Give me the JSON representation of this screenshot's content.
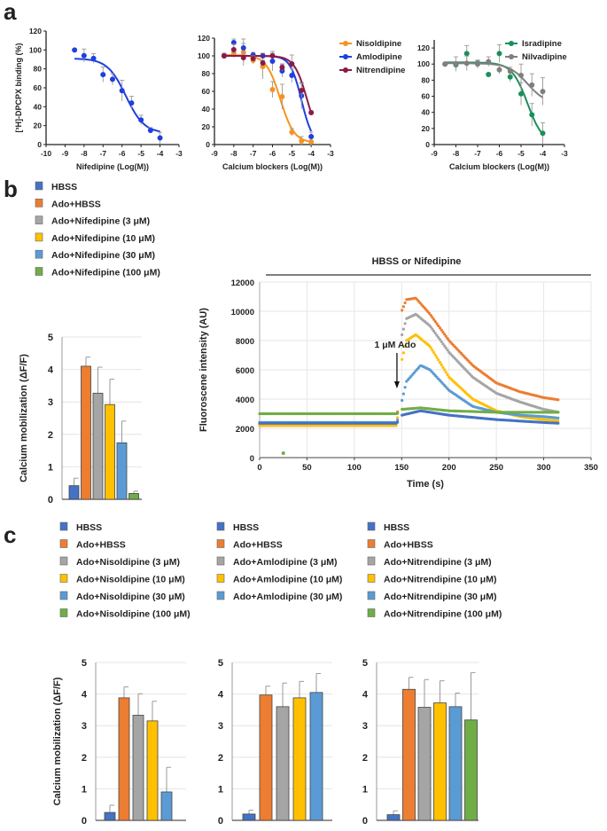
{
  "panels": {
    "a": "a",
    "b": "b",
    "c": "c"
  },
  "colors": {
    "HBSS": "#4472c4",
    "Ado+HBSS": "#ed7d31",
    "3": "#a5a5a5",
    "10": "#ffc000",
    "30": "#5b9bd5",
    "100": "#70ad47",
    "Nifedipine": "#1f3fe0",
    "Nisoldipine": "#f7931e",
    "Amlodipine": "#1f3fe0",
    "Nitrendipine": "#8b1a4a",
    "Isradipine": "#1a8f5a",
    "Nilvadipine": "#7f7f7f"
  },
  "chart_data": [
    {
      "id": "a1",
      "type": "scatter",
      "xlabel": "Nifedipine (Log(M))",
      "ylabel": "[³H]-DPCPX binding (%)",
      "xlim": [
        -10,
        -3
      ],
      "ylim": [
        0,
        120
      ],
      "xticks": [
        "-10",
        "-9",
        "-8",
        "-7",
        "-6",
        "-5",
        "-4",
        "-3"
      ],
      "yticks": [
        "0",
        "20",
        "40",
        "60",
        "80",
        "100",
        "120"
      ],
      "series": [
        {
          "key": "Nifedipine",
          "x": [
            -8.5,
            -8,
            -7.5,
            -7,
            -6.5,
            -6,
            -5.5,
            -5,
            -4.5,
            -4
          ],
          "y": [
            100,
            94,
            91,
            74,
            69,
            57,
            44,
            26,
            15,
            7
          ],
          "err": [
            0,
            7,
            5,
            8,
            6,
            11,
            7,
            5,
            3,
            6
          ],
          "fit": {
            "top": 91,
            "bottom": 12,
            "logIC50": -5.8,
            "hill": 0.9,
            "range": [
              -8.5,
              -4
            ]
          }
        }
      ]
    },
    {
      "id": "a2",
      "type": "scatter",
      "xlabel": "Calcium blockers (Log(M))",
      "ylabel": "",
      "xlim": [
        -9,
        -3
      ],
      "ylim": [
        0,
        120
      ],
      "xticks": [
        "-9",
        "-8",
        "-7",
        "-6",
        "-5",
        "-4",
        "-3"
      ],
      "yticks": [
        "0",
        "20",
        "40",
        "60",
        "80",
        "100",
        "120"
      ],
      "legend": "right",
      "series": [
        {
          "name": "Nisoldipine",
          "key": "Nisoldipine",
          "x": [
            -8.5,
            -8,
            -7.5,
            -7,
            -6.5,
            -6,
            -5.5,
            -5,
            -4.5,
            -4
          ],
          "y": [
            100,
            103,
            104,
            95,
            88,
            62,
            54,
            14,
            4,
            3
          ],
          "err": [
            3,
            5,
            15,
            4,
            14,
            9,
            14,
            4,
            5,
            4
          ],
          "fit": {
            "top": 101,
            "bottom": 2,
            "logIC50": -5.6,
            "hill": 1.2,
            "range": [
              -8.5,
              -4
            ]
          }
        },
        {
          "name": "Amlodipine",
          "key": "Amlodipine",
          "x": [
            -8.5,
            -8,
            -7.5,
            -7,
            -6.5,
            -6,
            -5.5,
            -5,
            -4.5,
            -4
          ],
          "y": [
            100,
            115,
            109,
            101,
            100,
            94,
            83,
            78,
            55,
            9
          ],
          "err": [
            2,
            4,
            5,
            3,
            3,
            11,
            7,
            8,
            15,
            5
          ],
          "fit": {
            "top": 100,
            "bottom": 0,
            "logIC50": -4.5,
            "hill": 1.5,
            "range": [
              -8.5,
              -4
            ]
          }
        },
        {
          "name": "Nitrendipine",
          "key": "Nitrendipine",
          "x": [
            -8.5,
            -8,
            -7.5,
            -7,
            -6.5,
            -6,
            -5.5,
            -5,
            -4.5,
            -4
          ],
          "y": [
            100,
            107,
            98,
            97,
            92,
            100,
            87,
            91,
            61,
            36
          ],
          "err": [
            2,
            6,
            5,
            3,
            3,
            3,
            4,
            10,
            8,
            2
          ],
          "fit": {
            "top": 100,
            "bottom": 0,
            "logIC50": -4.2,
            "hill": 1.3,
            "range": [
              -8.5,
              -4
            ]
          }
        }
      ]
    },
    {
      "id": "a3",
      "type": "scatter",
      "xlabel": "Calcium blockers (Log(M))",
      "ylabel": "",
      "xlim": [
        -9,
        -3
      ],
      "ylim": [
        0,
        130
      ],
      "xticks": [
        "-9",
        "-8",
        "-7",
        "-6",
        "-5",
        "-4",
        "-3"
      ],
      "yticks": [
        "0",
        "20",
        "40",
        "60",
        "80",
        "100",
        "120"
      ],
      "legend": "top-right",
      "series": [
        {
          "name": "Isradipine",
          "key": "Isradipine",
          "x": [
            -8.5,
            -8,
            -7.5,
            -7,
            -6.5,
            -6,
            -5.5,
            -5,
            -4.5,
            -4
          ],
          "y": [
            100,
            99,
            113,
            101,
            87,
            113,
            84,
            63,
            37,
            14
          ],
          "err": [
            2,
            4,
            10,
            3,
            2,
            11,
            6,
            14,
            14,
            13
          ],
          "fit": {
            "top": 102,
            "bottom": 0,
            "logIC50": -4.7,
            "hill": 1.2,
            "range": [
              -8.5,
              -4
            ]
          }
        },
        {
          "name": "Nilvadipine",
          "key": "Nilvadipine",
          "x": [
            -8.5,
            -8,
            -7.5,
            -7,
            -6.5,
            -6,
            -5.5,
            -5,
            -4.5,
            -4
          ],
          "y": [
            100,
            100,
            101,
            100,
            103,
            93,
            91,
            86,
            74,
            66
          ],
          "err": [
            2,
            9,
            9,
            5,
            6,
            5,
            5,
            14,
            14,
            17
          ],
          "fit": {
            "top": 101,
            "bottom": 50,
            "logIC50": -4.7,
            "hill": 1.0,
            "range": [
              -8.5,
              -4
            ]
          }
        }
      ]
    },
    {
      "id": "b1",
      "type": "bar",
      "ylabel": "Calcium mobilization (ΔF/F)",
      "ylim": [
        0,
        5
      ],
      "yticks": [
        "0",
        "1",
        "2",
        "3",
        "4",
        "5"
      ],
      "grid": true,
      "legend": "top",
      "categories": [
        "HBSS",
        "Ado+HBSS",
        "Ado+Nifedipine (3 μM)",
        "Ado+Nifedipine (10 μM)",
        "Ado+Nifedipine (30 μM)",
        "Ado+Nifedipine (100 μM)"
      ],
      "keys": [
        "HBSS",
        "Ado+HBSS",
        "3",
        "10",
        "30",
        "100"
      ],
      "values": [
        0.42,
        4.1,
        3.27,
        2.92,
        1.74,
        0.18
      ],
      "errors": [
        0.23,
        0.28,
        0.8,
        0.78,
        0.67,
        0.07
      ]
    },
    {
      "id": "b2",
      "type": "scatter",
      "title": "HBSS or Nifedipine",
      "xlabel": "Time (s)",
      "ylabel": "Fluoroscene intensity (AU)",
      "xlim": [
        0,
        350
      ],
      "ylim": [
        0,
        12000
      ],
      "grid": true,
      "xticks": [
        "0",
        "50",
        "100",
        "150",
        "200",
        "250",
        "300",
        "350"
      ],
      "yticks": [
        "0",
        "2000",
        "4000",
        "6000",
        "8000",
        "10000",
        "12000"
      ],
      "annotation": {
        "text": "1 μM Ado",
        "x": 145
      },
      "series": [
        {
          "key": "Ado+HBSS",
          "t": [
            0,
            145,
            150,
            155,
            165,
            180,
            200,
            225,
            250,
            275,
            300,
            316
          ],
          "y": [
            2200,
            2200,
            10000,
            10800,
            10900,
            9800,
            8000,
            6300,
            5100,
            4500,
            4100,
            3950
          ]
        },
        {
          "key": "3",
          "t": [
            0,
            145,
            150,
            155,
            165,
            180,
            200,
            225,
            250,
            275,
            300,
            316
          ],
          "y": [
            2300,
            2300,
            8300,
            9500,
            9800,
            9000,
            7200,
            5500,
            4400,
            3800,
            3300,
            3100
          ]
        },
        {
          "key": "10",
          "t": [
            0,
            145,
            150,
            155,
            165,
            180,
            200,
            225,
            250,
            275,
            300,
            316
          ],
          "y": [
            2200,
            2200,
            6600,
            8000,
            8400,
            7600,
            5500,
            4000,
            3200,
            2800,
            2600,
            2500
          ]
        },
        {
          "key": "30",
          "t": [
            0,
            145,
            150,
            155,
            170,
            180,
            200,
            225,
            250,
            275,
            300,
            316
          ],
          "y": [
            2400,
            2400,
            3800,
            5200,
            6300,
            6000,
            4600,
            3500,
            3100,
            2900,
            2800,
            2700
          ]
        },
        {
          "key": "HBSS",
          "t": [
            0,
            145,
            150,
            170,
            200,
            250,
            300,
            316
          ],
          "y": [
            2350,
            2350,
            2900,
            3200,
            2900,
            2600,
            2400,
            2350
          ]
        },
        {
          "key": "100",
          "t": [
            0,
            145,
            150,
            170,
            200,
            250,
            316
          ],
          "y": [
            3000,
            3000,
            3300,
            3400,
            3200,
            3100,
            3100
          ],
          "outlier": [
            25,
            300
          ]
        }
      ]
    },
    {
      "id": "c1",
      "type": "bar",
      "ylabel": "Calcium mobilization (ΔF/F)",
      "ylim": [
        0,
        5
      ],
      "yticks": [
        "0",
        "1",
        "2",
        "3",
        "4",
        "5"
      ],
      "grid": true,
      "legend": "top",
      "categories": [
        "HBSS",
        "Ado+HBSS",
        "Ado+Nisoldipine (3 μM)",
        "Ado+Nisoldipine (10 μM)",
        "Ado+Nisoldipine (30 μM)",
        "Ado+Nisoldipine (100 μM)"
      ],
      "keys": [
        "HBSS",
        "Ado+HBSS",
        "3",
        "10",
        "30",
        "100"
      ],
      "values": [
        0.25,
        3.88,
        3.33,
        3.15,
        0.9,
        0
      ],
      "errors": [
        0.23,
        0.35,
        0.68,
        0.62,
        0.78,
        0
      ]
    },
    {
      "id": "c2",
      "type": "bar",
      "ylabel": "",
      "ylim": [
        0,
        5
      ],
      "yticks": [
        "0",
        "1",
        "2",
        "3",
        "4",
        "5"
      ],
      "grid": true,
      "legend": "top",
      "categories": [
        "HBSS",
        "Ado+HBSS",
        "Ado+Amlodipine (3 μM)",
        "Ado+Amlodipine (10 μM)",
        "Ado+Amlodipine (30 μM)"
      ],
      "keys": [
        "HBSS",
        "Ado+HBSS",
        "3",
        "10",
        "30"
      ],
      "values": [
        0.2,
        3.97,
        3.6,
        3.88,
        4.05
      ],
      "errors": [
        0.12,
        0.28,
        0.75,
        0.52,
        0.6
      ]
    },
    {
      "id": "c3",
      "type": "bar",
      "ylabel": "",
      "ylim": [
        0,
        5
      ],
      "yticks": [
        "0",
        "1",
        "2",
        "3",
        "4",
        "5"
      ],
      "grid": true,
      "legend": "top",
      "categories": [
        "HBSS",
        "Ado+HBSS",
        "Ado+Nitrendipine (3 μM)",
        "Ado+Nitrendipine (10 μM)",
        "Ado+Nitrendipine (30 μM)",
        "Ado+Nitrendipine (100 μM)"
      ],
      "keys": [
        "HBSS",
        "Ado+HBSS",
        "3",
        "10",
        "30",
        "100"
      ],
      "values": [
        0.18,
        4.15,
        3.58,
        3.72,
        3.6,
        3.18
      ],
      "errors": [
        0.12,
        0.38,
        0.88,
        0.7,
        0.43,
        1.5
      ]
    }
  ]
}
